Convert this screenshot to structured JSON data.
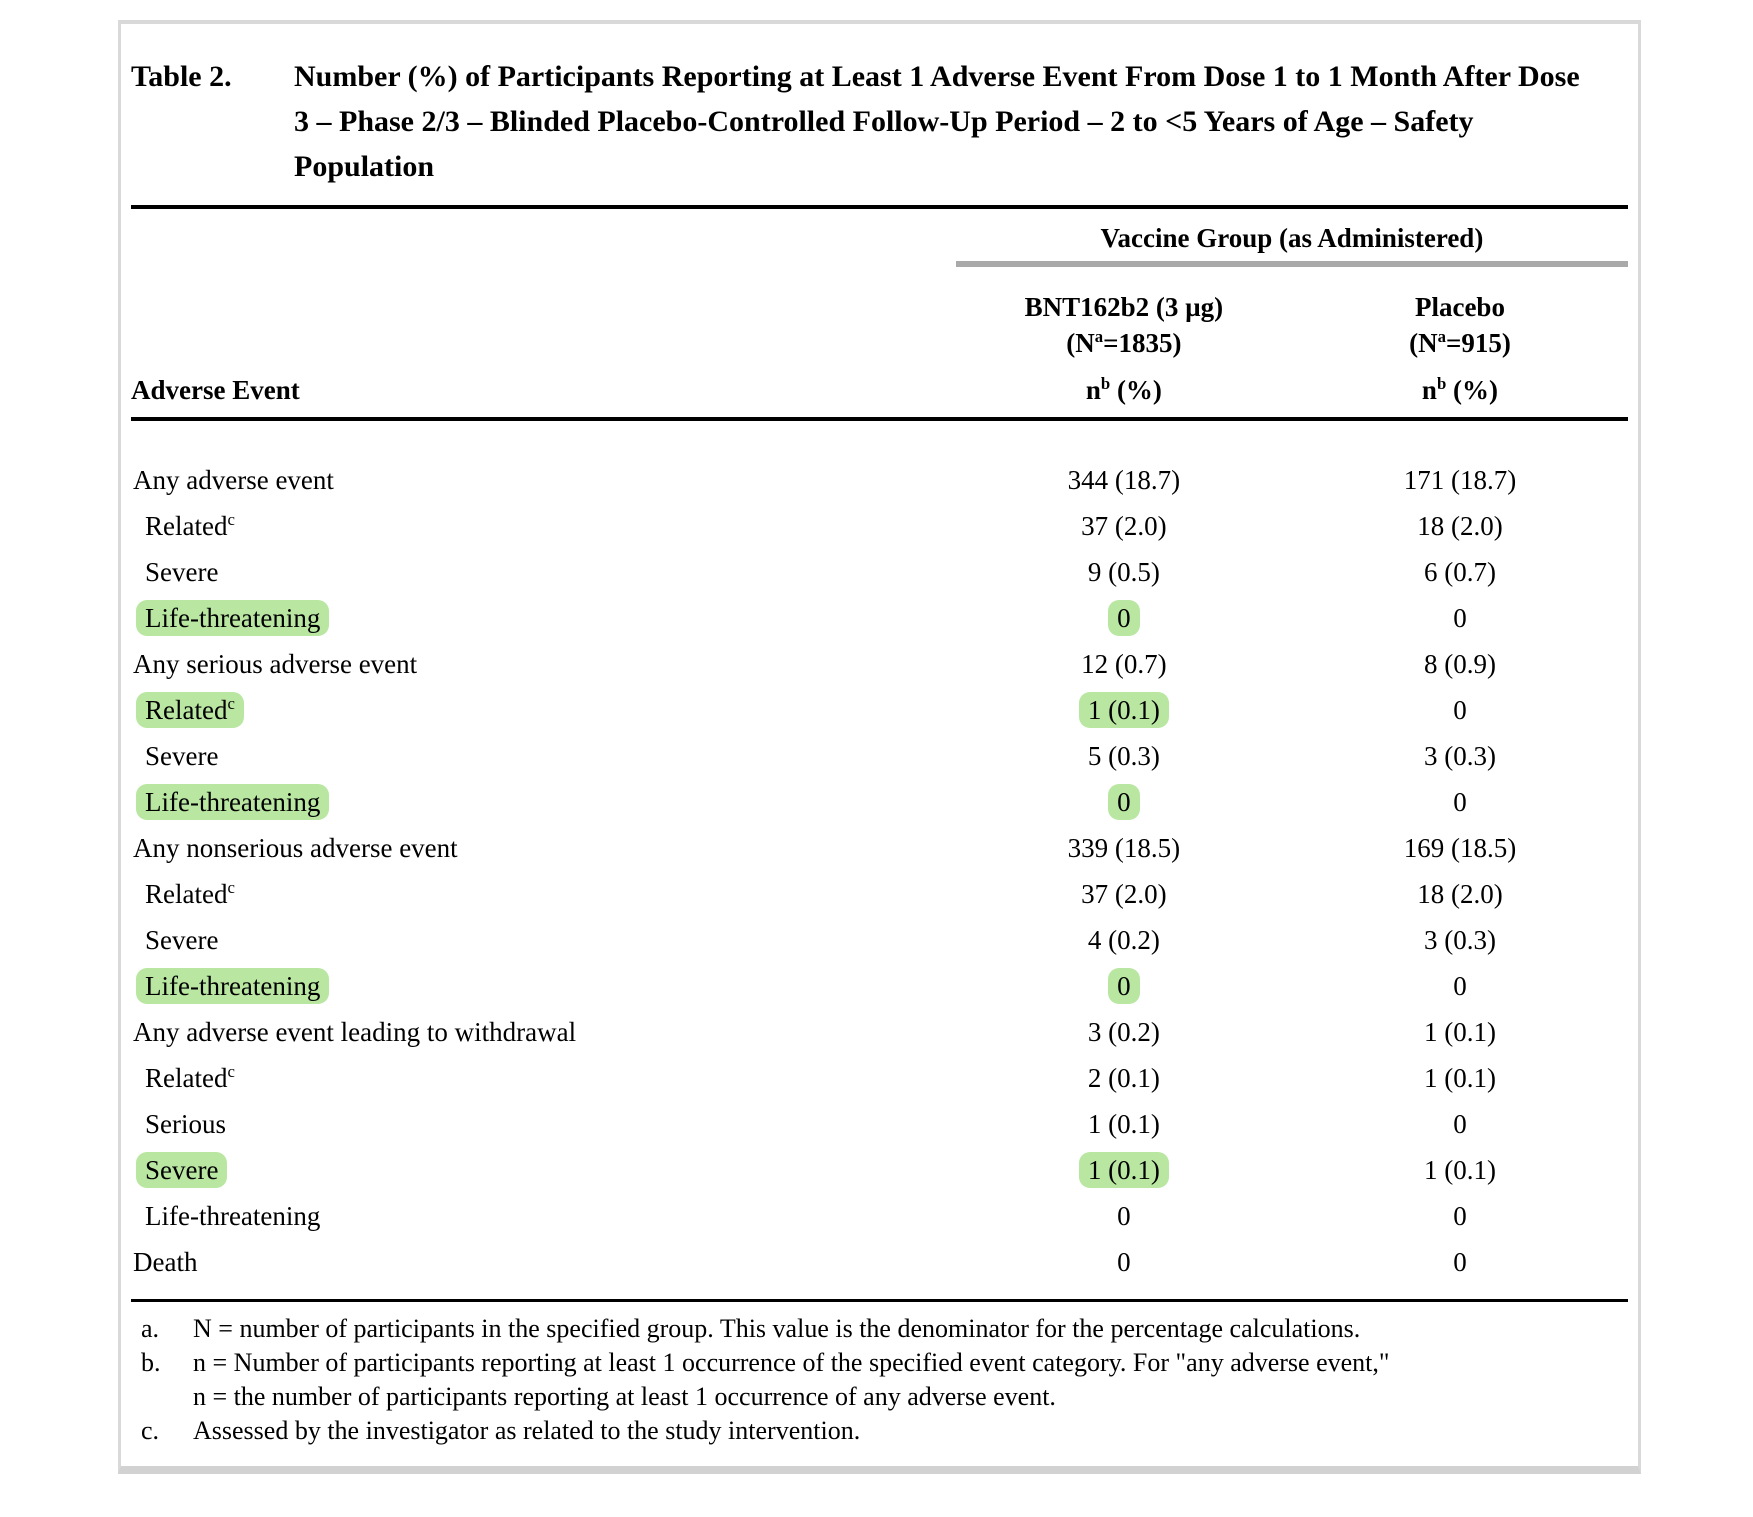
{
  "title": {
    "label": "Table 2.",
    "text": "Number (%) of Participants Reporting at Least 1 Adverse Event From Dose 1 to 1 Month After Dose 3 – Phase 2/3 – Blinded Placebo-Controlled Follow-Up Period – 2 to <5 Years of Age – Safety Population"
  },
  "header": {
    "group_title": "Vaccine Group (as Administered)",
    "col1_name": "BNT162b2 (3 µg)",
    "col1_n_prefix": "(N",
    "col1_n_sup": "a",
    "col1_n_suffix": "=1835)",
    "col2_name": "Placebo",
    "col2_n_prefix": "(N",
    "col2_n_sup": "a",
    "col2_n_suffix": "=915)",
    "row_label": "Adverse Event",
    "n_prefix": "n",
    "n_sup": "b",
    "n_suffix": " (%)"
  },
  "rows": [
    {
      "label": "Any adverse event",
      "sup": "",
      "bnt": "344 (18.7)",
      "placebo": "171 (18.7)"
    },
    {
      "label": "Related",
      "sup": "c",
      "bnt": "37 (2.0)",
      "placebo": "18 (2.0)"
    },
    {
      "label": "Severe",
      "sup": "",
      "bnt": "9 (0.5)",
      "placebo": "6 (0.7)"
    },
    {
      "label": "Life-threatening",
      "sup": "",
      "bnt": "0",
      "placebo": "0",
      "highlighted": true
    },
    {
      "label": "Any serious adverse event",
      "sup": "",
      "bnt": "12 (0.7)",
      "placebo": "8 (0.9)"
    },
    {
      "label": "Related",
      "sup": "c",
      "bnt": "1 (0.1)",
      "placebo": "0",
      "highlighted": true
    },
    {
      "label": "Severe",
      "sup": "",
      "bnt": "5 (0.3)",
      "placebo": "3 (0.3)"
    },
    {
      "label": "Life-threatening",
      "sup": "",
      "bnt": "0",
      "placebo": "0",
      "highlighted": true
    },
    {
      "label": "Any nonserious adverse event",
      "sup": "",
      "bnt": "339 (18.5)",
      "placebo": "169 (18.5)"
    },
    {
      "label": "Related",
      "sup": "c",
      "bnt": "37 (2.0)",
      "placebo": "18 (2.0)"
    },
    {
      "label": "Severe",
      "sup": "",
      "bnt": "4 (0.2)",
      "placebo": "3 (0.3)"
    },
    {
      "label": "Life-threatening",
      "sup": "",
      "bnt": "0",
      "placebo": "0",
      "highlighted": true
    },
    {
      "label": "Any adverse event leading to withdrawal",
      "sup": "",
      "bnt": "3 (0.2)",
      "placebo": "1 (0.1)"
    },
    {
      "label": "Related",
      "sup": "c",
      "bnt": "2 (0.1)",
      "placebo": "1 (0.1)"
    },
    {
      "label": "Serious",
      "sup": "",
      "bnt": "1 (0.1)",
      "placebo": "0"
    },
    {
      "label": "Severe",
      "sup": "",
      "bnt": "1 (0.1)",
      "placebo": "1 (0.1)",
      "highlighted": true
    },
    {
      "label": "Life-threatening",
      "sup": "",
      "bnt": "0",
      "placebo": "0"
    },
    {
      "label": "Death",
      "sup": "",
      "bnt": "0",
      "placebo": "0"
    }
  ],
  "footnotes": [
    {
      "marker": "a.",
      "text": "N = number of participants in the specified group. This value is the denominator for the percentage calculations."
    },
    {
      "marker": "b.",
      "text": "n = Number of participants reporting at least 1 occurrence of the specified event category. For \"any adverse event,\"",
      "text2": "n = the number of participants reporting at least 1 occurrence of any adverse event."
    },
    {
      "marker": "c.",
      "text": "Assessed by the investigator as related to the study intervention."
    }
  ],
  "colors": {
    "highlight_green": "#b9e7a2",
    "group_bar_gray": "#a9a9a9",
    "page_border_gray": "#d9d9d9",
    "rule_black": "#000000"
  }
}
